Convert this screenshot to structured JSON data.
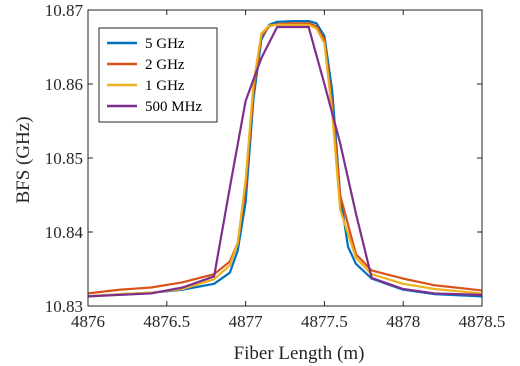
{
  "chart_data": {
    "type": "line",
    "title": "",
    "xlabel": "Fiber Length (m)",
    "ylabel": "BFS (GHz)",
    "xlim": [
      4876,
      4878.5
    ],
    "ylim": [
      10.83,
      10.87
    ],
    "xticks": [
      4876,
      4876.5,
      4877,
      4877.5,
      4878,
      4878.5
    ],
    "xtick_labels": [
      "4876",
      "4876.5",
      "4877",
      "4877.5",
      "4878",
      "4878.5"
    ],
    "yticks": [
      10.83,
      10.84,
      10.85,
      10.86,
      10.87
    ],
    "ytick_labels": [
      "10.83",
      "10.84",
      "10.85",
      "10.86",
      "10.87"
    ],
    "grid": false,
    "legend_position": "top-left",
    "series": [
      {
        "name": "5 GHz",
        "color": "#0072BD",
        "points": [
          [
            4876,
            10.8313
          ],
          [
            4876.2,
            10.8316
          ],
          [
            4876.4,
            10.8318
          ],
          [
            4876.6,
            10.8322
          ],
          [
            4876.8,
            10.833
          ],
          [
            4876.9,
            10.8345
          ],
          [
            4876.95,
            10.8375
          ],
          [
            4877.0,
            10.844
          ],
          [
            4877.05,
            10.858
          ],
          [
            4877.1,
            10.866
          ],
          [
            4877.15,
            10.868
          ],
          [
            4877.2,
            10.8684
          ],
          [
            4877.3,
            10.8685
          ],
          [
            4877.4,
            10.8685
          ],
          [
            4877.45,
            10.8682
          ],
          [
            4877.5,
            10.8665
          ],
          [
            4877.55,
            10.859
          ],
          [
            4877.6,
            10.845
          ],
          [
            4877.65,
            10.838
          ],
          [
            4877.7,
            10.8357
          ],
          [
            4877.8,
            10.8337
          ],
          [
            4878.0,
            10.8322
          ],
          [
            4878.2,
            10.8316
          ],
          [
            4878.5,
            10.8313
          ]
        ]
      },
      {
        "name": "2 GHz",
        "color": "#D95319",
        "points": [
          [
            4876,
            10.8317
          ],
          [
            4876.2,
            10.8322
          ],
          [
            4876.4,
            10.8325
          ],
          [
            4876.6,
            10.8332
          ],
          [
            4876.8,
            10.8343
          ],
          [
            4876.9,
            10.836
          ],
          [
            4876.95,
            10.8385
          ],
          [
            4877.0,
            10.846
          ],
          [
            4877.05,
            10.859
          ],
          [
            4877.1,
            10.8665
          ],
          [
            4877.15,
            10.8678
          ],
          [
            4877.2,
            10.8681
          ],
          [
            4877.3,
            10.8682
          ],
          [
            4877.4,
            10.8682
          ],
          [
            4877.45,
            10.8678
          ],
          [
            4877.5,
            10.866
          ],
          [
            4877.55,
            10.857
          ],
          [
            4877.6,
            10.845
          ],
          [
            4877.7,
            10.837
          ],
          [
            4877.8,
            10.8348
          ],
          [
            4878.0,
            10.8337
          ],
          [
            4878.2,
            10.8328
          ],
          [
            4878.5,
            10.8321
          ]
        ]
      },
      {
        "name": "1 GHz",
        "color": "#EDB120",
        "points": [
          [
            4876,
            10.8313
          ],
          [
            4876.2,
            10.8316
          ],
          [
            4876.4,
            10.8318
          ],
          [
            4876.6,
            10.8323
          ],
          [
            4876.8,
            10.8336
          ],
          [
            4876.9,
            10.8355
          ],
          [
            4876.95,
            10.8385
          ],
          [
            4877.0,
            10.847
          ],
          [
            4877.05,
            10.86
          ],
          [
            4877.1,
            10.8668
          ],
          [
            4877.15,
            10.8679
          ],
          [
            4877.2,
            10.868
          ],
          [
            4877.3,
            10.868
          ],
          [
            4877.4,
            10.868
          ],
          [
            4877.45,
            10.8675
          ],
          [
            4877.5,
            10.8655
          ],
          [
            4877.55,
            10.856
          ],
          [
            4877.6,
            10.843
          ],
          [
            4877.7,
            10.8365
          ],
          [
            4877.8,
            10.8343
          ],
          [
            4878.0,
            10.833
          ],
          [
            4878.2,
            10.8323
          ],
          [
            4878.5,
            10.8317
          ]
        ]
      },
      {
        "name": "500 MHz",
        "color": "#7E2F8E",
        "points": [
          [
            4876,
            10.8313
          ],
          [
            4876.2,
            10.8315
          ],
          [
            4876.4,
            10.8317
          ],
          [
            4876.6,
            10.8325
          ],
          [
            4876.8,
            10.834
          ],
          [
            4876.9,
            10.846
          ],
          [
            4877.0,
            10.8577
          ],
          [
            4877.1,
            10.8635
          ],
          [
            4877.2,
            10.8677
          ],
          [
            4877.4,
            10.8677
          ],
          [
            4877.5,
            10.86
          ],
          [
            4877.6,
            10.852
          ],
          [
            4877.7,
            10.8425
          ],
          [
            4877.8,
            10.8338
          ],
          [
            4878.0,
            10.8323
          ],
          [
            4878.2,
            10.8317
          ],
          [
            4878.5,
            10.8315
          ]
        ]
      }
    ]
  }
}
